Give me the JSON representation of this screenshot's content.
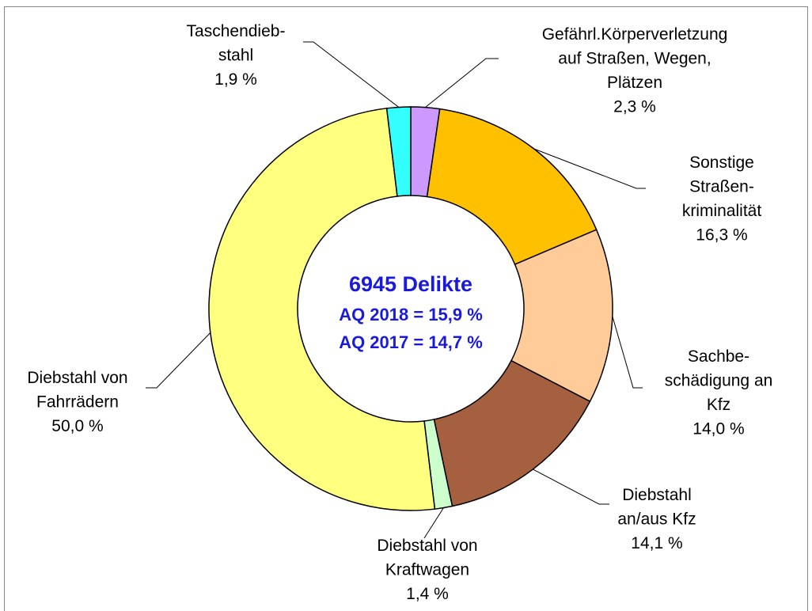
{
  "chart_data": {
    "type": "donut",
    "categories": [
      [
        "Gefährl.Körperverletzung",
        "auf Straßen, Wegen,",
        "Plätzen"
      ],
      [
        "Sonstige",
        "Straßen-",
        "kriminalität"
      ],
      [
        "Sachbe-",
        "schädigung an",
        "Kfz"
      ],
      [
        "Diebstahl",
        "an/aus Kfz"
      ],
      [
        "Diebstahl von",
        "Kraftwagen"
      ],
      [
        "Diebstahl von",
        "Fahrrädern"
      ],
      [
        "Taschendieb-",
        "stahl"
      ]
    ],
    "values": [
      2.3,
      16.3,
      14.0,
      14.1,
      1.4,
      50.0,
      1.9
    ],
    "value_labels": [
      "2,3 %",
      "16,3 %",
      "14,0 %",
      "14,1 %",
      "1,4 %",
      "50,0 %",
      "1,9 %"
    ],
    "colors": [
      "#cc99ff",
      "#ffc000",
      "#ffcc99",
      "#a5603f",
      "#ccffcc",
      "#ffff80",
      "#33ffff"
    ],
    "annotations": [
      "6945 Delikte",
      "AQ 2018 = 15,9 %",
      "AQ 2017 = 14,7 %"
    ]
  }
}
